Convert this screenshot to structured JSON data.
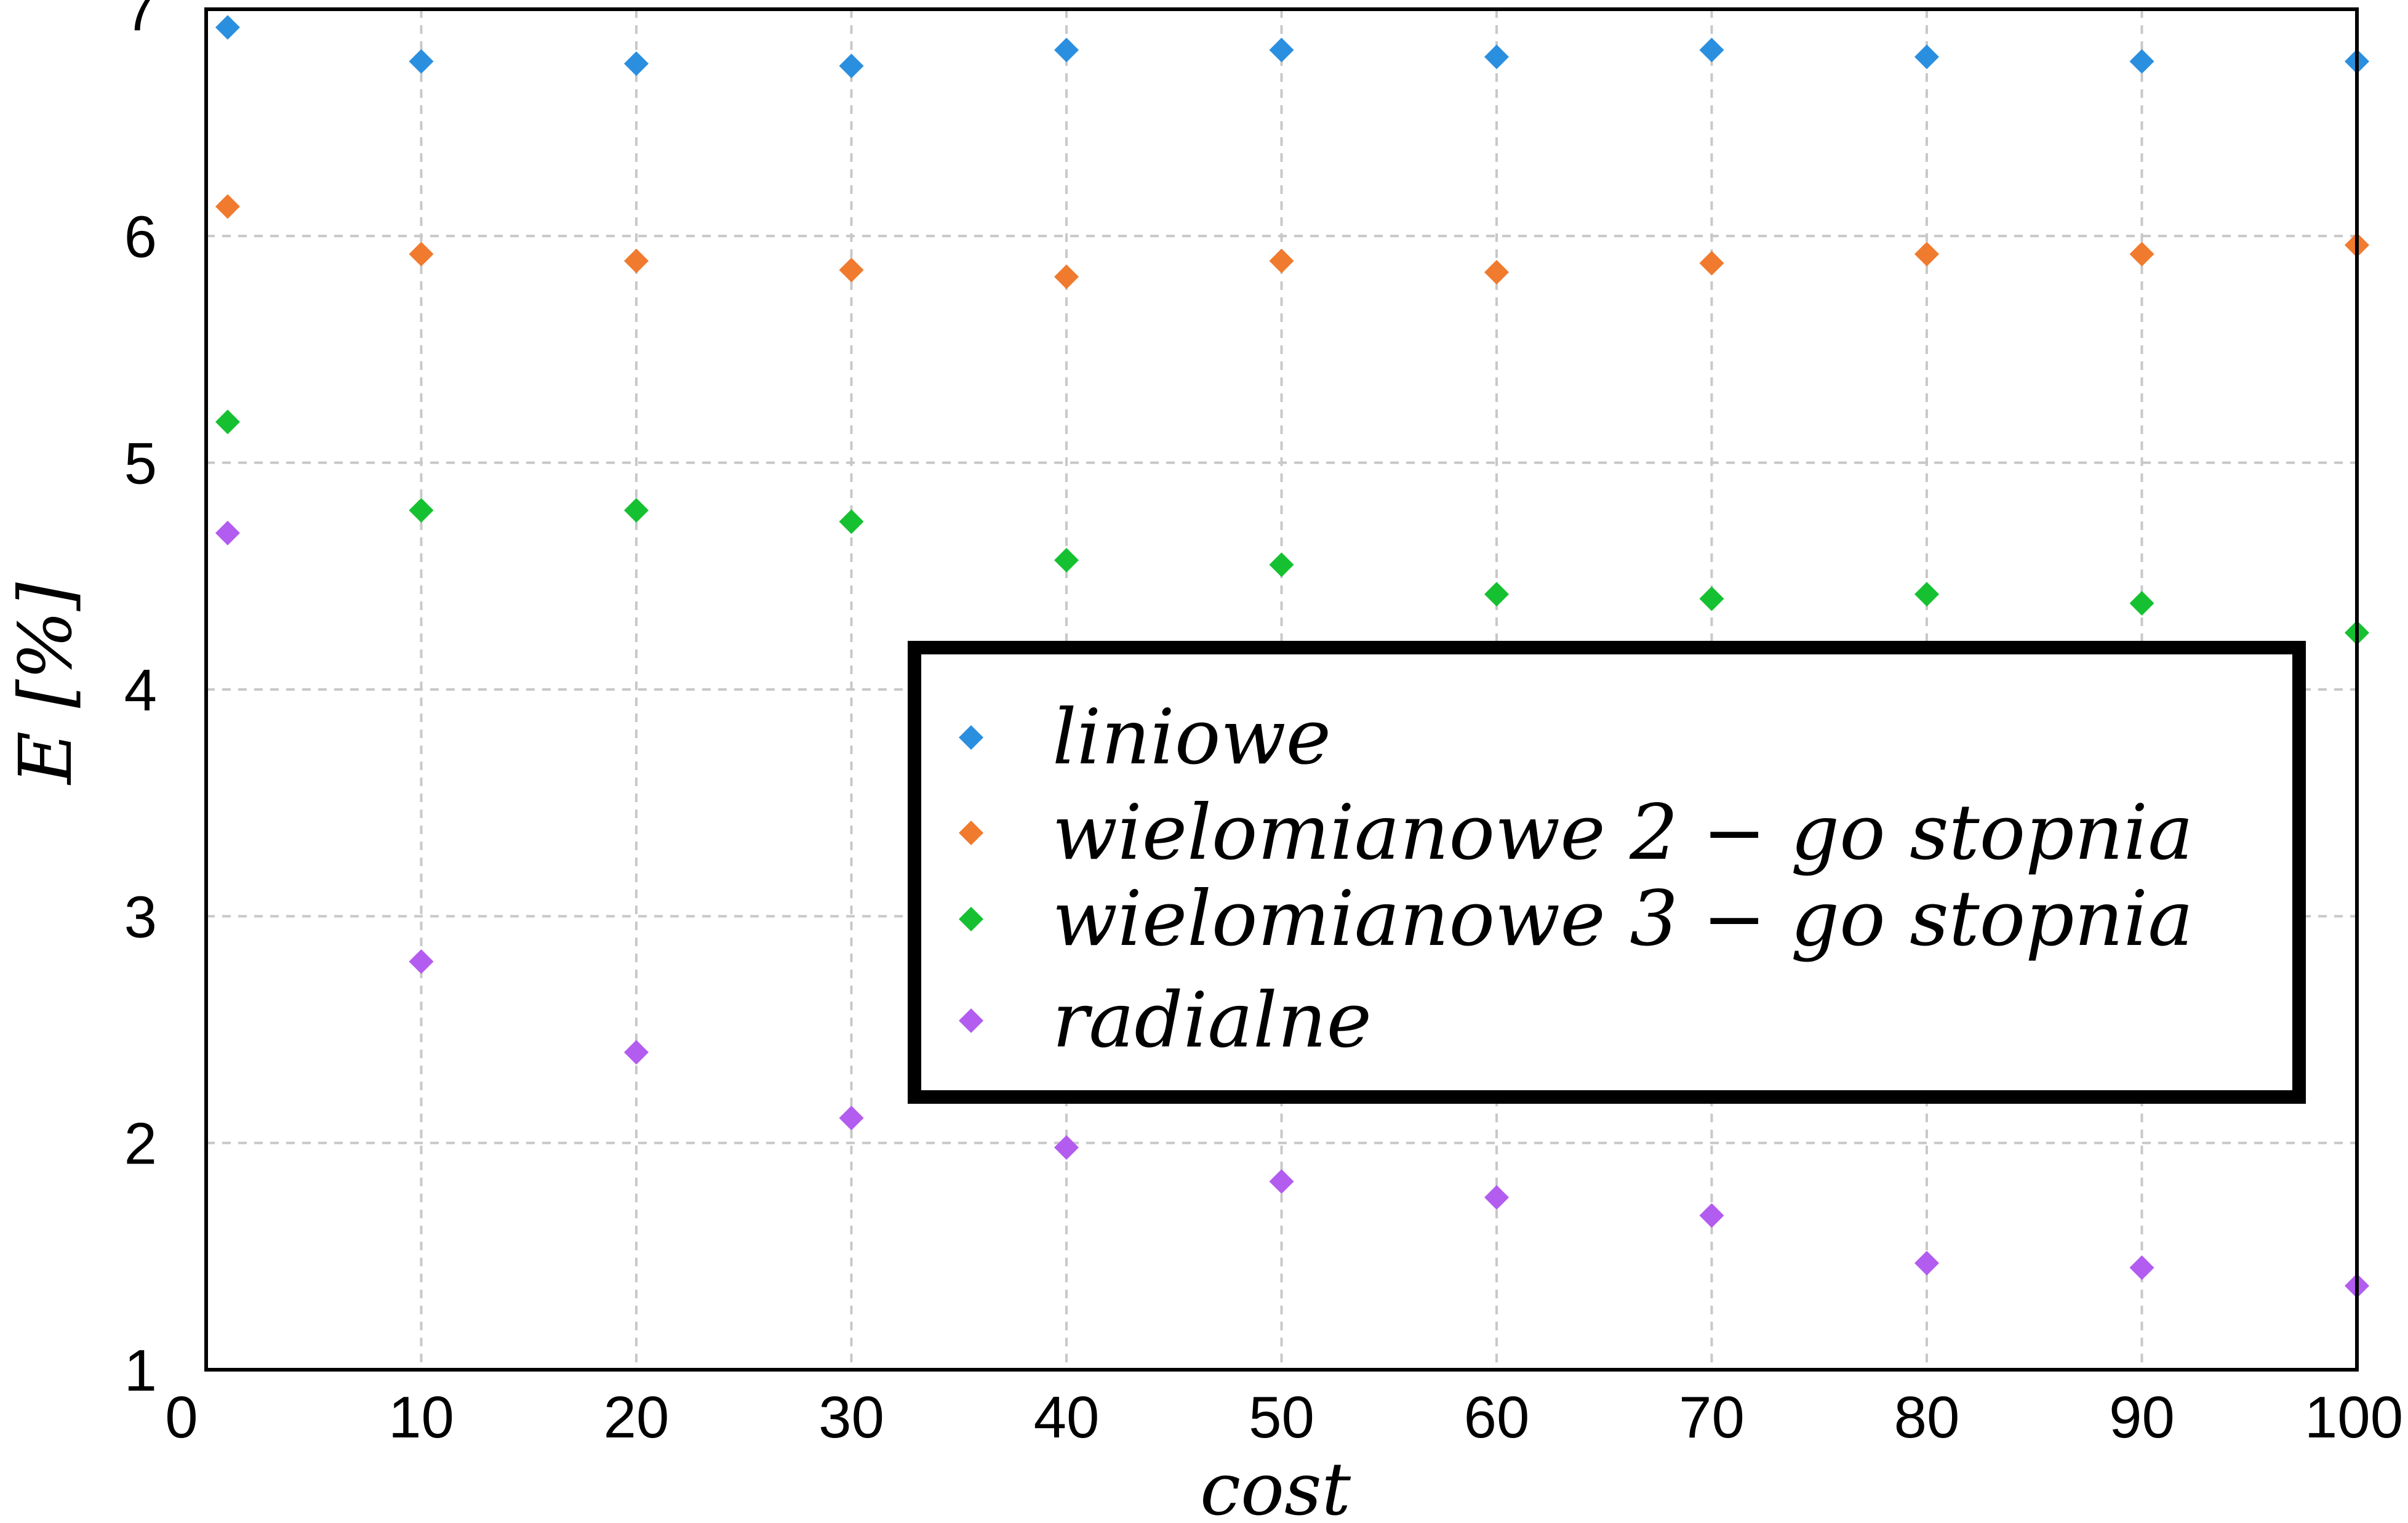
{
  "chart_data": {
    "type": "scatter",
    "title": "",
    "xlabel": "cost",
    "ylabel": "E [%]",
    "xlim": [
      0,
      100
    ],
    "ylim": [
      1,
      7
    ],
    "xticks": [
      0,
      10,
      20,
      30,
      40,
      50,
      60,
      70,
      80,
      90,
      100
    ],
    "yticks": [
      1,
      2,
      3,
      4,
      5,
      6,
      7
    ],
    "grid": true,
    "legend_position": "center-right",
    "x": [
      1,
      10,
      20,
      30,
      40,
      50,
      60,
      70,
      80,
      90,
      100
    ],
    "series": [
      {
        "name": "liniowe",
        "color": "#2b8fe0",
        "marker": "diamond",
        "values": [
          6.92,
          6.77,
          6.76,
          6.75,
          6.82,
          6.82,
          6.79,
          6.82,
          6.79,
          6.77,
          6.77
        ]
      },
      {
        "name": "wielomianowe 2 − go stopnia",
        "color": "#f07a2e",
        "marker": "diamond",
        "values": [
          6.13,
          5.92,
          5.89,
          5.85,
          5.82,
          5.89,
          5.84,
          5.88,
          5.92,
          5.92,
          5.96
        ]
      },
      {
        "name": "wielomianowe 3 − go stopnia",
        "color": "#16c131",
        "marker": "diamond",
        "values": [
          5.18,
          4.79,
          4.79,
          4.74,
          4.57,
          4.55,
          4.42,
          4.4,
          4.42,
          4.38,
          4.25
        ]
      },
      {
        "name": "radialne",
        "color": "#b35cf0",
        "marker": "diamond",
        "values": [
          4.69,
          2.8,
          2.4,
          2.11,
          1.98,
          1.83,
          1.76,
          1.68,
          1.47,
          1.45,
          1.37
        ]
      }
    ]
  }
}
